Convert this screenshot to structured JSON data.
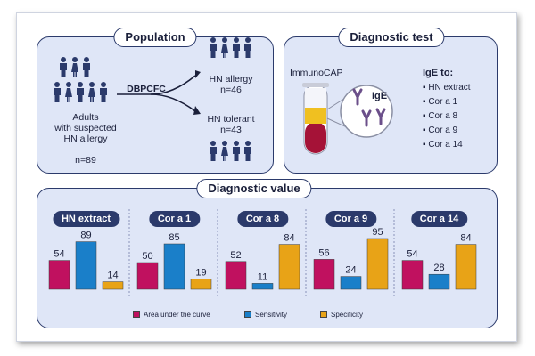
{
  "population": {
    "title": "Population",
    "adults_label": "Adults\nwith suspected\nHN allergy",
    "adults_line1": "Adults",
    "adults_line2": "with suspected",
    "adults_line3": "HN allergy",
    "n_total": "n=89",
    "method": "DBPCFC",
    "allergy_label": "HN allergy",
    "allergy_n": "n=46",
    "tolerant_label": "HN tolerant",
    "tolerant_n": "n=43"
  },
  "diagnostic_test": {
    "title": "Diagnostic test",
    "device": "ImmunoCAP",
    "antibody_label": "IgE",
    "list_title": "IgE to:",
    "items": [
      "HN extract",
      "Cor a 1",
      "Cor a 8",
      "Cor a 9",
      "Cor a 14"
    ]
  },
  "diagnostic_value": {
    "title": "Diagnostic value"
  },
  "colors": {
    "auc": "#c0115f",
    "sensitivity": "#1a7fc9",
    "specificity": "#e8a317",
    "navy": "#2b3a6b"
  },
  "chart_data": {
    "type": "bar",
    "categories": [
      "HN extract",
      "Cor a 1",
      "Cor a 8",
      "Cor a 9",
      "Cor a 14"
    ],
    "series": [
      {
        "name": "Area under the curve",
        "values": [
          54,
          50,
          52,
          56,
          54
        ]
      },
      {
        "name": "Sensitivity",
        "values": [
          89,
          85,
          11,
          24,
          28
        ]
      },
      {
        "name": "Specificity",
        "values": [
          14,
          19,
          84,
          95,
          84
        ]
      }
    ],
    "ylim": [
      0,
      100
    ],
    "grid": false,
    "legend": "bottom"
  }
}
